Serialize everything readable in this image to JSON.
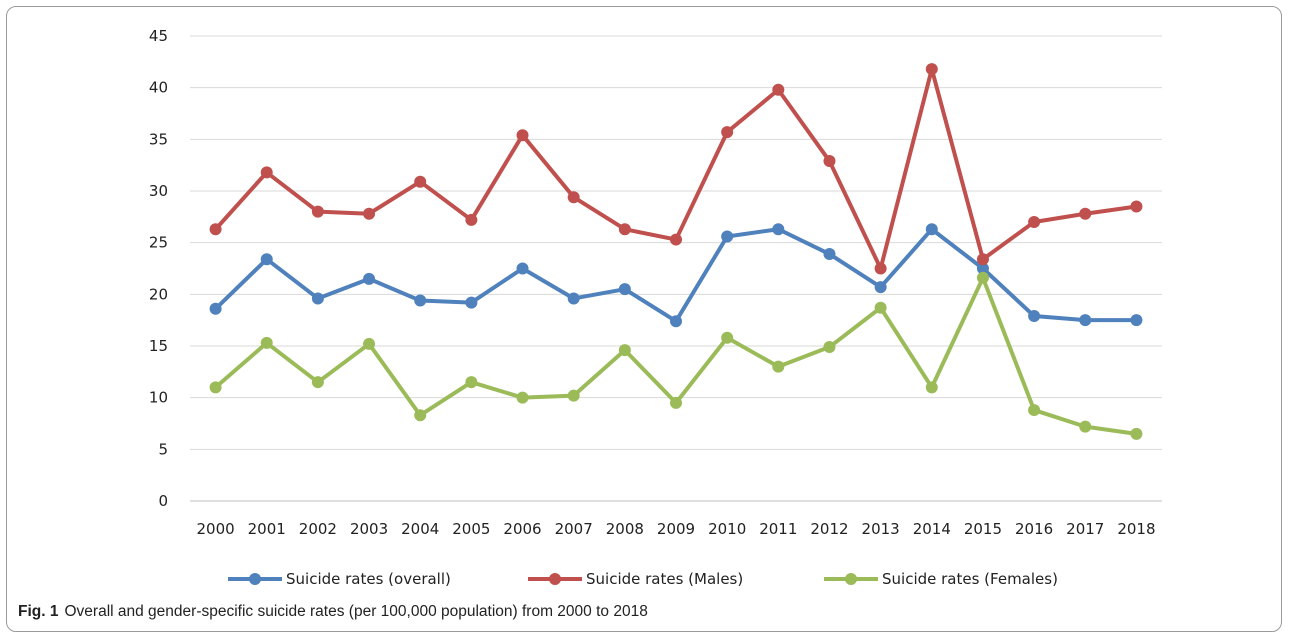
{
  "chart_data": {
    "type": "line",
    "categories": [
      "2000",
      "2001",
      "2002",
      "2003",
      "2004",
      "2005",
      "2006",
      "2007",
      "2008",
      "2009",
      "2010",
      "2011",
      "2012",
      "2013",
      "2014",
      "2015",
      "2016",
      "2017",
      "2018"
    ],
    "ylim": [
      0,
      45
    ],
    "yticks": [
      0,
      5,
      10,
      15,
      20,
      25,
      30,
      35,
      40,
      45
    ],
    "grid": true,
    "legend_position": "bottom",
    "series": [
      {
        "name": "Suicide rates (overall)",
        "color": "#4f81bd",
        "values": [
          18.6,
          23.4,
          19.6,
          21.5,
          19.4,
          19.2,
          22.5,
          19.6,
          20.5,
          17.4,
          25.6,
          26.3,
          23.9,
          20.7,
          26.3,
          22.5,
          17.9,
          17.5,
          17.5
        ]
      },
      {
        "name": "Suicide rates (Males)",
        "color": "#c0504d",
        "values": [
          26.3,
          31.8,
          28.0,
          27.8,
          30.9,
          27.2,
          35.4,
          29.4,
          26.3,
          25.3,
          35.7,
          39.8,
          32.9,
          22.5,
          41.8,
          23.4,
          27.0,
          27.8,
          28.5
        ]
      },
      {
        "name": "Suicide rates (Females)",
        "color": "#9bbb59",
        "values": [
          11.0,
          15.3,
          11.5,
          15.2,
          8.3,
          11.5,
          10.0,
          10.2,
          14.6,
          9.5,
          15.8,
          13.0,
          14.9,
          18.7,
          11.0,
          21.6,
          8.8,
          7.2,
          6.5
        ]
      }
    ]
  },
  "caption": {
    "label": "Fig. 1",
    "text": "Overall and gender-specific suicide rates (per 100,000 population) from 2000 to 2018"
  }
}
